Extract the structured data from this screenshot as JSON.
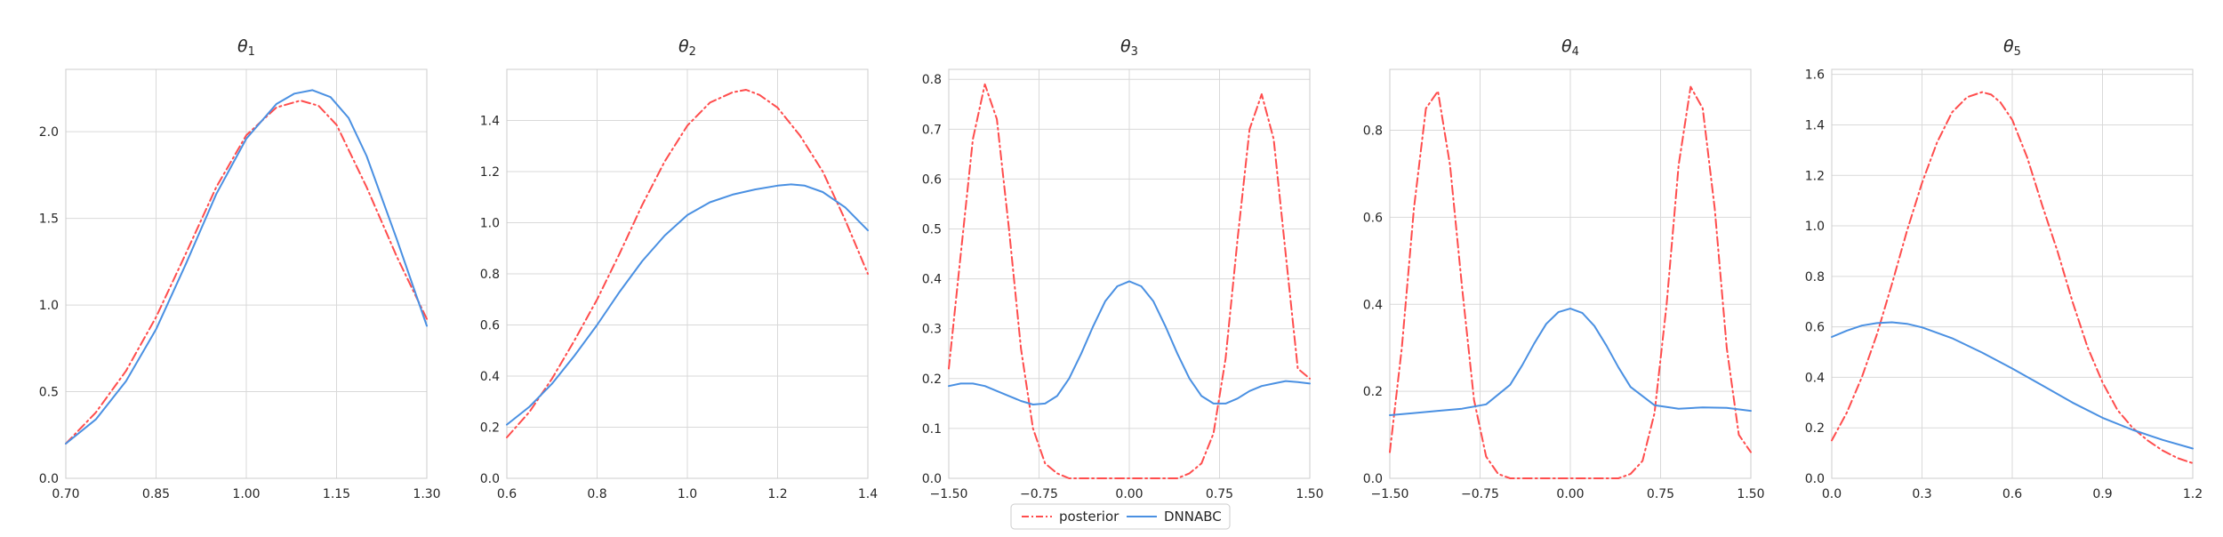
{
  "legend": {
    "placement": "bottom-center",
    "entries": [
      {
        "label": "posterior",
        "color": "#ff4d4d",
        "style": "dash-dot"
      },
      {
        "label": "DNNABC",
        "color": "#4a90e2",
        "style": "solid"
      }
    ]
  },
  "chart_data": [
    {
      "type": "line",
      "title": "θ",
      "title_subscript": "1",
      "xlim": [
        0.7,
        1.3
      ],
      "ylim": [
        0.0,
        2.36
      ],
      "xticks": [
        0.7,
        0.85,
        1.0,
        1.15,
        1.3
      ],
      "xtick_labels": [
        "0.70",
        "0.85",
        "1.00",
        "1.15",
        "1.30"
      ],
      "yticks": [
        0.0,
        0.5,
        1.0,
        1.5,
        2.0
      ],
      "ytick_labels": [
        "0.0",
        "0.5",
        "1.0",
        "1.5",
        "2.0"
      ],
      "grid": true,
      "series": [
        {
          "name": "posterior",
          "x": [
            0.7,
            0.75,
            0.8,
            0.85,
            0.9,
            0.95,
            1.0,
            1.05,
            1.09,
            1.12,
            1.15,
            1.2,
            1.25,
            1.3
          ],
          "y": [
            0.2,
            0.38,
            0.62,
            0.93,
            1.3,
            1.68,
            1.98,
            2.14,
            2.18,
            2.15,
            2.04,
            1.68,
            1.28,
            0.92
          ]
        },
        {
          "name": "DNNABC",
          "x": [
            0.7,
            0.75,
            0.8,
            0.85,
            0.9,
            0.95,
            1.0,
            1.05,
            1.08,
            1.11,
            1.14,
            1.17,
            1.2,
            1.25,
            1.3
          ],
          "y": [
            0.2,
            0.34,
            0.56,
            0.86,
            1.24,
            1.64,
            1.96,
            2.16,
            2.22,
            2.24,
            2.2,
            2.08,
            1.86,
            1.38,
            0.88
          ]
        }
      ]
    },
    {
      "type": "line",
      "title": "θ",
      "title_subscript": "2",
      "xlim": [
        0.6,
        1.4
      ],
      "ylim": [
        0.0,
        1.6
      ],
      "xticks": [
        0.6,
        0.8,
        1.0,
        1.2,
        1.4
      ],
      "xtick_labels": [
        "0.6",
        "0.8",
        "1.0",
        "1.2",
        "1.4"
      ],
      "yticks": [
        0.0,
        0.2,
        0.4,
        0.6,
        0.8,
        1.0,
        1.2,
        1.4
      ],
      "ytick_labels": [
        "0.0",
        "0.2",
        "0.4",
        "0.6",
        "0.8",
        "1.0",
        "1.2",
        "1.4"
      ],
      "grid": true,
      "series": [
        {
          "name": "posterior",
          "x": [
            0.6,
            0.65,
            0.7,
            0.75,
            0.8,
            0.85,
            0.9,
            0.95,
            1.0,
            1.05,
            1.1,
            1.13,
            1.16,
            1.2,
            1.25,
            1.3,
            1.35,
            1.4
          ],
          "y": [
            0.16,
            0.26,
            0.39,
            0.54,
            0.7,
            0.88,
            1.07,
            1.24,
            1.38,
            1.47,
            1.51,
            1.52,
            1.5,
            1.45,
            1.34,
            1.2,
            1.01,
            0.8
          ]
        },
        {
          "name": "DNNABC",
          "x": [
            0.6,
            0.65,
            0.7,
            0.75,
            0.8,
            0.85,
            0.9,
            0.95,
            1.0,
            1.05,
            1.1,
            1.15,
            1.2,
            1.23,
            1.26,
            1.3,
            1.35,
            1.4
          ],
          "y": [
            0.21,
            0.28,
            0.37,
            0.48,
            0.6,
            0.73,
            0.85,
            0.95,
            1.03,
            1.08,
            1.11,
            1.13,
            1.145,
            1.15,
            1.145,
            1.12,
            1.06,
            0.97
          ]
        }
      ]
    },
    {
      "type": "line",
      "title": "θ",
      "title_subscript": "3",
      "xlim": [
        -1.5,
        1.5
      ],
      "ylim": [
        0.0,
        0.82
      ],
      "xticks": [
        -1.5,
        -0.75,
        0.0,
        0.75,
        1.5
      ],
      "xtick_labels": [
        "−1.50",
        "−0.75",
        "0.00",
        "0.75",
        "1.50"
      ],
      "yticks": [
        0.0,
        0.1,
        0.2,
        0.3,
        0.4,
        0.5,
        0.6,
        0.7,
        0.8
      ],
      "ytick_labels": [
        "0.0",
        "0.1",
        "0.2",
        "0.3",
        "0.4",
        "0.5",
        "0.6",
        "0.7",
        "0.8"
      ],
      "grid": true,
      "series": [
        {
          "name": "posterior",
          "x": [
            -1.5,
            -1.4,
            -1.3,
            -1.2,
            -1.1,
            -1.0,
            -0.9,
            -0.8,
            -0.7,
            -0.6,
            -0.5,
            -0.4,
            -0.3,
            0.0,
            0.3,
            0.4,
            0.5,
            0.6,
            0.7,
            0.8,
            0.9,
            1.0,
            1.1,
            1.2,
            1.3,
            1.4,
            1.5
          ],
          "y": [
            0.22,
            0.45,
            0.68,
            0.79,
            0.72,
            0.5,
            0.26,
            0.1,
            0.03,
            0.01,
            0.0,
            0.0,
            0.0,
            0.0,
            0.0,
            0.0,
            0.01,
            0.03,
            0.09,
            0.24,
            0.48,
            0.7,
            0.77,
            0.68,
            0.45,
            0.22,
            0.2
          ]
        },
        {
          "name": "DNNABC",
          "x": [
            -1.5,
            -1.4,
            -1.3,
            -1.2,
            -1.1,
            -1.0,
            -0.9,
            -0.8,
            -0.7,
            -0.6,
            -0.5,
            -0.4,
            -0.3,
            -0.2,
            -0.1,
            0.0,
            0.1,
            0.2,
            0.3,
            0.4,
            0.5,
            0.6,
            0.7,
            0.8,
            0.9,
            1.0,
            1.1,
            1.2,
            1.3,
            1.4,
            1.5
          ],
          "y": [
            0.185,
            0.19,
            0.19,
            0.185,
            0.175,
            0.165,
            0.155,
            0.148,
            0.15,
            0.165,
            0.2,
            0.25,
            0.305,
            0.355,
            0.385,
            0.395,
            0.385,
            0.355,
            0.305,
            0.25,
            0.2,
            0.165,
            0.15,
            0.15,
            0.16,
            0.175,
            0.185,
            0.19,
            0.195,
            0.193,
            0.19
          ]
        }
      ]
    },
    {
      "type": "line",
      "title": "θ",
      "title_subscript": "4",
      "xlim": [
        -1.5,
        1.5
      ],
      "ylim": [
        0.0,
        0.94
      ],
      "xticks": [
        -1.5,
        -0.75,
        0.0,
        0.75,
        1.5
      ],
      "xtick_labels": [
        "−1.50",
        "−0.75",
        "0.00",
        "0.75",
        "1.50"
      ],
      "yticks": [
        0.0,
        0.2,
        0.4,
        0.6,
        0.8
      ],
      "ytick_labels": [
        "0.0",
        "0.2",
        "0.4",
        "0.6",
        "0.8"
      ],
      "grid": true,
      "series": [
        {
          "name": "posterior",
          "x": [
            -1.5,
            -1.4,
            -1.3,
            -1.2,
            -1.1,
            -1.0,
            -0.9,
            -0.8,
            -0.7,
            -0.6,
            -0.5,
            -0.4,
            -0.3,
            0.0,
            0.3,
            0.4,
            0.5,
            0.6,
            0.7,
            0.8,
            0.9,
            1.0,
            1.1,
            1.2,
            1.3,
            1.4,
            1.5
          ],
          "y": [
            0.06,
            0.3,
            0.62,
            0.85,
            0.89,
            0.72,
            0.44,
            0.18,
            0.05,
            0.01,
            0.0,
            0.0,
            0.0,
            0.0,
            0.0,
            0.0,
            0.01,
            0.04,
            0.15,
            0.4,
            0.72,
            0.9,
            0.85,
            0.62,
            0.3,
            0.1,
            0.06
          ]
        },
        {
          "name": "DNNABC",
          "x": [
            -1.5,
            -1.3,
            -1.1,
            -0.9,
            -0.7,
            -0.5,
            -0.4,
            -0.3,
            -0.2,
            -0.1,
            0.0,
            0.1,
            0.2,
            0.3,
            0.4,
            0.5,
            0.7,
            0.9,
            1.1,
            1.3,
            1.5
          ],
          "y": [
            0.145,
            0.15,
            0.155,
            0.16,
            0.17,
            0.215,
            0.26,
            0.31,
            0.355,
            0.382,
            0.39,
            0.38,
            0.35,
            0.305,
            0.255,
            0.21,
            0.168,
            0.16,
            0.163,
            0.162,
            0.155
          ]
        }
      ]
    },
    {
      "type": "line",
      "title": "θ",
      "title_subscript": "5",
      "xlim": [
        0.0,
        1.2
      ],
      "ylim": [
        0.0,
        1.62
      ],
      "xticks": [
        0.0,
        0.3,
        0.6,
        0.9,
        1.2
      ],
      "xtick_labels": [
        "0.0",
        "0.3",
        "0.6",
        "0.9",
        "1.2"
      ],
      "yticks": [
        0.0,
        0.2,
        0.4,
        0.6,
        0.8,
        1.0,
        1.2,
        1.4,
        1.6
      ],
      "ytick_labels": [
        "0.0",
        "0.2",
        "0.4",
        "0.6",
        "0.8",
        "1.0",
        "1.2",
        "1.4",
        "1.6"
      ],
      "grid": true,
      "series": [
        {
          "name": "posterior",
          "x": [
            0.0,
            0.05,
            0.1,
            0.15,
            0.2,
            0.25,
            0.3,
            0.35,
            0.4,
            0.45,
            0.5,
            0.53,
            0.56,
            0.6,
            0.65,
            0.7,
            0.75,
            0.8,
            0.85,
            0.9,
            0.95,
            1.0,
            1.05,
            1.1,
            1.15,
            1.2
          ],
          "y": [
            0.15,
            0.26,
            0.4,
            0.57,
            0.77,
            0.98,
            1.17,
            1.33,
            1.45,
            1.51,
            1.53,
            1.52,
            1.49,
            1.42,
            1.27,
            1.08,
            0.9,
            0.7,
            0.52,
            0.38,
            0.27,
            0.2,
            0.15,
            0.11,
            0.08,
            0.06
          ]
        },
        {
          "name": "DNNABC",
          "x": [
            0.0,
            0.05,
            0.1,
            0.15,
            0.2,
            0.25,
            0.3,
            0.4,
            0.5,
            0.6,
            0.7,
            0.8,
            0.9,
            1.0,
            1.1,
            1.2
          ],
          "y": [
            0.56,
            0.585,
            0.605,
            0.615,
            0.618,
            0.612,
            0.598,
            0.555,
            0.498,
            0.435,
            0.368,
            0.3,
            0.24,
            0.192,
            0.152,
            0.118
          ]
        }
      ]
    }
  ]
}
